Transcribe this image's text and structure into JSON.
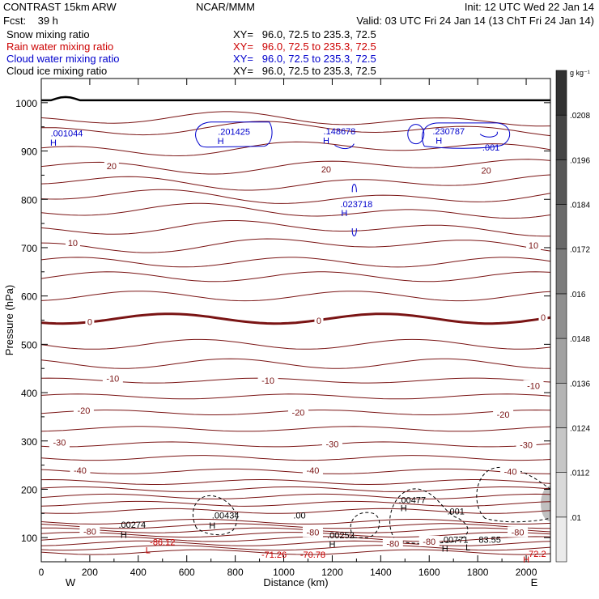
{
  "header": {
    "model": "CONTRAST 15km ARW",
    "forecast": "Fcst:    39 h",
    "center": "NCAR/MMM",
    "init": "Init: 12 UTC Wed 22 Jan 14",
    "valid": "Valid: 03 UTC Fri 24 Jan 14 (13 ChT Fri 24 Jan 14)"
  },
  "fields": [
    {
      "label": "Snow mixing ratio",
      "xy": "XY=   96.0, 72.5 to 235.3, 72.5",
      "color": "#000000"
    },
    {
      "label": "Rain water mixing ratio",
      "xy": "XY=   96.0, 72.5 to 235.3, 72.5",
      "color": "#cc0000"
    },
    {
      "label": "Cloud water mixing ratio",
      "xy": "XY=   96.0, 72.5 to 235.3, 72.5",
      "color": "#0000cc"
    },
    {
      "label": "Cloud ice mixing ratio",
      "xy": "XY=   96.0, 72.5 to 235.3, 72.5",
      "color": "#000000"
    }
  ],
  "chart_data": {
    "type": "contour",
    "xlabel": "Distance (km)",
    "ylabel": "Pressure (hPa)",
    "xlim": [
      0,
      2100
    ],
    "ylim": [
      1050,
      50
    ],
    "xticks": [
      0,
      200,
      400,
      600,
      800,
      1000,
      1200,
      1400,
      1600,
      1800,
      2000
    ],
    "yticks": [
      100,
      200,
      300,
      400,
      500,
      600,
      700,
      800,
      900,
      1000
    ],
    "x_ends": {
      "left": "W",
      "right": "E"
    },
    "colorbar": {
      "units": "g kg⁻¹",
      "labels": [
        ".01",
        ".0112",
        ".0124",
        ".0136",
        ".0148",
        ".016",
        ".0172",
        ".0184",
        ".0196",
        ".0208"
      ]
    },
    "temperature_contours": [
      {
        "label": "-80",
        "x": 200,
        "p": 113
      },
      {
        "label": "-80",
        "x": 1120,
        "p": 111
      },
      {
        "label": "-80",
        "x": 1450,
        "p": 88
      },
      {
        "label": "-80",
        "x": 1600,
        "p": 92
      },
      {
        "label": "-80",
        "x": 1965,
        "p": 111
      },
      {
        "label": "-40",
        "x": 160,
        "p": 239
      },
      {
        "label": "-40",
        "x": 1120,
        "p": 239
      },
      {
        "label": "-40",
        "x": 1935,
        "p": 237
      },
      {
        "label": "-30",
        "x": 75,
        "p": 297
      },
      {
        "label": "-30",
        "x": 1200,
        "p": 294
      },
      {
        "label": "-30",
        "x": 2000,
        "p": 292
      },
      {
        "label": "-20",
        "x": 175,
        "p": 363
      },
      {
        "label": "-20",
        "x": 1060,
        "p": 359
      },
      {
        "label": "-20",
        "x": 1905,
        "p": 355
      },
      {
        "label": "-10",
        "x": 295,
        "p": 429
      },
      {
        "label": "-10",
        "x": 935,
        "p": 425
      },
      {
        "label": "-10",
        "x": 2030,
        "p": 414
      },
      {
        "label": "0",
        "x": 200,
        "p": 547
      },
      {
        "label": "0",
        "x": 1145,
        "p": 549
      },
      {
        "label": "0",
        "x": 2070,
        "p": 556
      },
      {
        "label": "10",
        "x": 130,
        "p": 710
      },
      {
        "label": "10",
        "x": 2030,
        "p": 705
      },
      {
        "label": "20",
        "x": 290,
        "p": 869
      },
      {
        "label": "20",
        "x": 1175,
        "p": 862
      },
      {
        "label": "20",
        "x": 1835,
        "p": 860
      }
    ],
    "extrema_labels": [
      {
        "text": "L",
        "x": 440,
        "p": 74,
        "color": "#cc0000"
      },
      {
        "text": "-86.12",
        "x": 500,
        "p": 91,
        "color": "#cc0000"
      },
      {
        "text": "-71.26",
        "x": 960,
        "p": 65,
        "color": "#cc0000"
      },
      {
        "text": "-70.78",
        "x": 1120,
        "p": 65,
        "color": "#cc0000"
      },
      {
        "text": "H",
        "x": 2000,
        "p": 55,
        "color": "#cc0000"
      },
      {
        "text": "-72.2",
        "x": 2040,
        "p": 67,
        "color": "#cc0000"
      },
      {
        "text": "L",
        "x": 1760,
        "p": 80,
        "color": "#000000"
      },
      {
        "text": "H",
        "x": 340,
        "p": 106,
        "color": "#000000"
      },
      {
        "text": ".00274",
        "x": 375,
        "p": 127,
        "color": "#000000"
      },
      {
        "text": "H",
        "x": 705,
        "p": 125,
        "color": "#000000"
      },
      {
        "text": ".00434",
        "x": 760,
        "p": 146,
        "color": "#000000"
      },
      {
        "text": "H",
        "x": 1200,
        "p": 87,
        "color": "#000000"
      },
      {
        "text": ".00252",
        "x": 1235,
        "p": 105,
        "color": "#000000"
      },
      {
        "text": ".00",
        "x": 1065,
        "p": 146,
        "color": "#000000"
      },
      {
        "text": "H",
        "x": 1665,
        "p": 78,
        "color": "#000000"
      },
      {
        "text": ".00771",
        "x": 1705,
        "p": 96,
        "color": "#000000"
      },
      {
        "text": "83.55",
        "x": 1850,
        "p": 96,
        "color": "#000000"
      },
      {
        "text": ".001",
        "x": 1710,
        "p": 155,
        "color": "#000000"
      },
      {
        "text": "H",
        "x": 1495,
        "p": 161,
        "color": "#000000"
      },
      {
        "text": ".00477",
        "x": 1530,
        "p": 178,
        "color": "#000000"
      },
      {
        "text": "H",
        "x": 1250,
        "p": 772,
        "color": "#0000cc"
      },
      {
        "text": ".023718",
        "x": 1300,
        "p": 790,
        "color": "#0000cc"
      },
      {
        "text": "H",
        "x": 50,
        "p": 918,
        "color": "#0000cc"
      },
      {
        "text": ".001044",
        "x": 105,
        "p": 937,
        "color": "#0000cc"
      },
      {
        "text": "H",
        "x": 740,
        "p": 921,
        "color": "#0000cc"
      },
      {
        "text": ".201425",
        "x": 795,
        "p": 940,
        "color": "#0000cc"
      },
      {
        "text": "H",
        "x": 1175,
        "p": 922,
        "color": "#0000cc"
      },
      {
        "text": ".148678",
        "x": 1230,
        "p": 941,
        "color": "#0000cc"
      },
      {
        "text": "H",
        "x": 1640,
        "p": 922,
        "color": "#0000cc"
      },
      {
        "text": ".230787",
        "x": 1680,
        "p": 941,
        "color": "#0000cc"
      },
      {
        "text": ".001",
        "x": 1855,
        "p": 908,
        "color": "#0000cc"
      }
    ]
  }
}
